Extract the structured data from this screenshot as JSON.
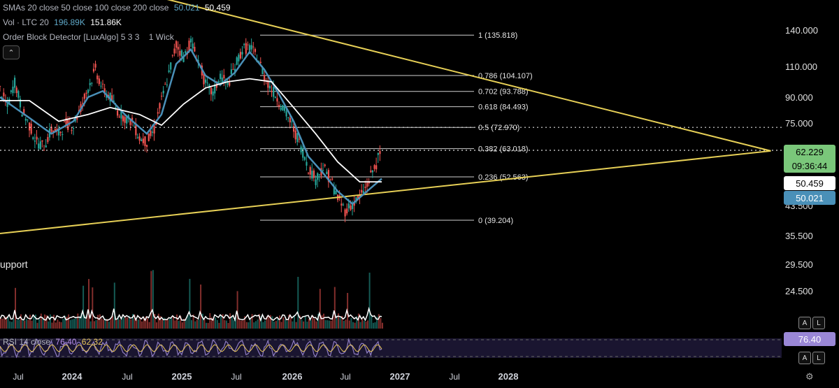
{
  "legend": {
    "sma_label": "SMAs 20 close 50 close 100 close 200 close",
    "sma_val_1": "50.021",
    "sma_val_2": "50.459",
    "vol_label": "Vol · LTC 20",
    "vol_val_1": "196.89K",
    "vol_val_2": "151.86K",
    "ob_label": "Order Block Detector [LuxAlgo] 5 3 3",
    "ob_extra": "1 Wick",
    "rsi_label": "RSI 14 close",
    "rsi_val_1": "76.40",
    "rsi_val_2": "62.32"
  },
  "annotations": {
    "support": "upport"
  },
  "buttons": {
    "collapse": "⌃",
    "auto": "A",
    "log": "L",
    "auto2": "A",
    "log2": "L"
  },
  "badges": {
    "current_price": "62.229",
    "countdown": "09:36:44",
    "sma_a": "50.459",
    "sma_b": "50.021",
    "rsi": "76.40"
  },
  "colors": {
    "background": "#000000",
    "triangle": "#e6cf56",
    "sma_fast": "#4a90b8",
    "sma_slow": "#ffffff",
    "candle_up": "#26a69a",
    "candle_down": "#ef5350",
    "rsi_line": "#8e7cc3",
    "rsi_ma": "#e8c65a",
    "price_badge": "#7ac77a"
  },
  "chart_data": {
    "type": "line",
    "price_axis_ticks": [
      "140.000",
      "110.000",
      "90.000",
      "75.000",
      "43.500",
      "35.500",
      "29.500",
      "24.500"
    ],
    "time_axis_ticks": [
      "Jul",
      "2024",
      "Jul",
      "2025",
      "Jul",
      "2026",
      "Jul",
      "2027",
      "Jul",
      "2028"
    ],
    "fibonacci": [
      {
        "level": "1",
        "price": 135.818,
        "label": "1 (135.818)"
      },
      {
        "level": "0.786",
        "price": 104.107,
        "label": "0.786 (104.107)"
      },
      {
        "level": "0.702",
        "price": 93.788,
        "label": "0.702 (93.788)"
      },
      {
        "level": "0.618",
        "price": 84.493,
        "label": "0.618 (84.493)"
      },
      {
        "level": "0.5",
        "price": 72.97,
        "label": "0.5 (72.970)"
      },
      {
        "level": "0.382",
        "price": 63.018,
        "label": "0.382 (63.018)"
      },
      {
        "level": "0.236",
        "price": 52.563,
        "label": "0.236 (52.563)"
      },
      {
        "level": "0",
        "price": 39.204,
        "label": "0 (39.204)"
      }
    ],
    "price_series": [
      {
        "t": 0,
        "p": 95
      },
      {
        "t": 2,
        "p": 84
      },
      {
        "t": 4,
        "p": 100
      },
      {
        "t": 6,
        "p": 82
      },
      {
        "t": 8,
        "p": 74
      },
      {
        "t": 10,
        "p": 66
      },
      {
        "t": 12,
        "p": 64
      },
      {
        "t": 14,
        "p": 72
      },
      {
        "t": 16,
        "p": 70
      },
      {
        "t": 18,
        "p": 75
      },
      {
        "t": 20,
        "p": 74
      },
      {
        "t": 22,
        "p": 84
      },
      {
        "t": 24,
        "p": 96
      },
      {
        "t": 26,
        "p": 108
      },
      {
        "t": 28,
        "p": 95
      },
      {
        "t": 30,
        "p": 90
      },
      {
        "t": 32,
        "p": 82
      },
      {
        "t": 34,
        "p": 78
      },
      {
        "t": 36,
        "p": 76
      },
      {
        "t": 38,
        "p": 68
      },
      {
        "t": 40,
        "p": 66
      },
      {
        "t": 42,
        "p": 72
      },
      {
        "t": 44,
        "p": 88
      },
      {
        "t": 46,
        "p": 105
      },
      {
        "t": 48,
        "p": 128
      },
      {
        "t": 50,
        "p": 118
      },
      {
        "t": 52,
        "p": 130
      },
      {
        "t": 54,
        "p": 115
      },
      {
        "t": 56,
        "p": 98
      },
      {
        "t": 58,
        "p": 92
      },
      {
        "t": 60,
        "p": 104
      },
      {
        "t": 62,
        "p": 98
      },
      {
        "t": 64,
        "p": 110
      },
      {
        "t": 66,
        "p": 124
      },
      {
        "t": 68,
        "p": 126
      },
      {
        "t": 70,
        "p": 118
      },
      {
        "t": 72,
        "p": 104
      },
      {
        "t": 74,
        "p": 95
      },
      {
        "t": 76,
        "p": 88
      },
      {
        "t": 78,
        "p": 80
      },
      {
        "t": 80,
        "p": 72
      },
      {
        "t": 82,
        "p": 64
      },
      {
        "t": 84,
        "p": 56
      },
      {
        "t": 86,
        "p": 52
      },
      {
        "t": 88,
        "p": 56
      },
      {
        "t": 90,
        "p": 52
      },
      {
        "t": 92,
        "p": 46
      },
      {
        "t": 94,
        "p": 42
      },
      {
        "t": 96,
        "p": 44
      },
      {
        "t": 98,
        "p": 46
      },
      {
        "t": 100,
        "p": 50
      },
      {
        "t": 102,
        "p": 56
      },
      {
        "t": 104,
        "p": 62
      }
    ],
    "sma_fast_series": [
      {
        "t": 0,
        "p": 90
      },
      {
        "t": 8,
        "p": 78
      },
      {
        "t": 14,
        "p": 70
      },
      {
        "t": 20,
        "p": 76
      },
      {
        "t": 24,
        "p": 90
      },
      {
        "t": 28,
        "p": 94
      },
      {
        "t": 34,
        "p": 80
      },
      {
        "t": 40,
        "p": 70
      },
      {
        "t": 44,
        "p": 80
      },
      {
        "t": 48,
        "p": 112
      },
      {
        "t": 52,
        "p": 124
      },
      {
        "t": 56,
        "p": 104
      },
      {
        "t": 60,
        "p": 98
      },
      {
        "t": 64,
        "p": 106
      },
      {
        "t": 68,
        "p": 122
      },
      {
        "t": 72,
        "p": 108
      },
      {
        "t": 76,
        "p": 92
      },
      {
        "t": 80,
        "p": 76
      },
      {
        "t": 84,
        "p": 60
      },
      {
        "t": 88,
        "p": 54
      },
      {
        "t": 92,
        "p": 48
      },
      {
        "t": 96,
        "p": 44
      },
      {
        "t": 100,
        "p": 48
      },
      {
        "t": 104,
        "p": 52
      }
    ],
    "sma_slow_series": [
      {
        "t": 0,
        "p": 88
      },
      {
        "t": 8,
        "p": 88
      },
      {
        "t": 16,
        "p": 76
      },
      {
        "t": 24,
        "p": 80
      },
      {
        "t": 30,
        "p": 84
      },
      {
        "t": 38,
        "p": 80
      },
      {
        "t": 44,
        "p": 74
      },
      {
        "t": 50,
        "p": 86
      },
      {
        "t": 56,
        "p": 96
      },
      {
        "t": 62,
        "p": 100
      },
      {
        "t": 68,
        "p": 102
      },
      {
        "t": 74,
        "p": 100
      },
      {
        "t": 80,
        "p": 84
      },
      {
        "t": 86,
        "p": 70
      },
      {
        "t": 92,
        "p": 58
      },
      {
        "t": 98,
        "p": 51
      },
      {
        "t": 104,
        "p": 51
      }
    ],
    "triangle_upper": [
      {
        "t": 0,
        "p": 200
      },
      {
        "t": 210,
        "p": 62
      }
    ],
    "triangle_lower": [
      {
        "t": 0,
        "p": 36
      },
      {
        "t": 210,
        "p": 62
      }
    ],
    "dotted_levels": [
      62.229,
      72.97
    ],
    "grid": false
  }
}
